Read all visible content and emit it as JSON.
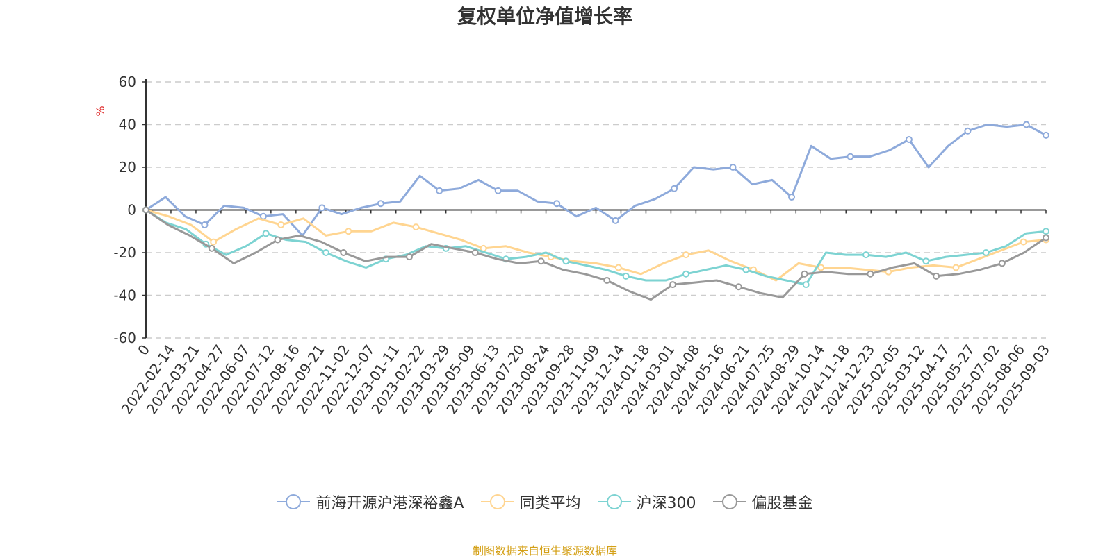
{
  "chart_data": {
    "type": "line",
    "title": "复权单位净值增长率",
    "ylabel": "%",
    "xlabel": "",
    "ylim": [
      -60,
      60
    ],
    "yticks": [
      60,
      40,
      20,
      0,
      -20,
      -40,
      -60
    ],
    "grid": true,
    "legend_position": "bottom",
    "x_tick_labels": [
      "0",
      "2022-02-14",
      "2022-03-21",
      "2022-04-27",
      "2022-06-07",
      "2022-07-12",
      "2022-08-16",
      "2022-09-21",
      "2022-11-02",
      "2022-12-07",
      "2023-01-11",
      "2023-02-22",
      "2023-03-29",
      "2023-05-09",
      "2023-06-13",
      "2023-07-20",
      "2023-08-24",
      "2023-09-28",
      "2023-11-09",
      "2023-12-14",
      "2024-01-18",
      "2024-03-01",
      "2024-04-08",
      "2024-05-16",
      "2024-06-21",
      "2024-07-25",
      "2024-08-29",
      "2024-10-14",
      "2024-11-18",
      "2024-12-23",
      "2025-02-05",
      "2025-03-12",
      "2025-04-17",
      "2025-05-27",
      "2025-07-02",
      "2025-08-06",
      "2025-09-03"
    ],
    "series": [
      {
        "name": "前海开源沪港深裕鑫A",
        "color": "#8eaadb",
        "values": [
          0,
          6,
          -3,
          -7,
          2,
          1,
          -3,
          -2,
          -12,
          1,
          -2,
          1,
          3,
          4,
          16,
          9,
          10,
          14,
          9,
          9,
          4,
          3,
          -3,
          1,
          -5,
          2,
          5,
          10,
          20,
          19,
          20,
          12,
          14,
          6,
          30,
          24,
          25,
          25,
          28,
          33,
          20,
          30,
          37,
          40,
          39,
          40,
          35
        ]
      },
      {
        "name": "同类平均",
        "color": "#ffd591",
        "values": [
          0,
          -3,
          -7,
          -15,
          -9,
          -4,
          -7,
          -4,
          -12,
          -10,
          -10,
          -6,
          -8,
          -11,
          -14,
          -18,
          -17,
          -20,
          -22,
          -24,
          -25,
          -27,
          -30,
          -25,
          -21,
          -19,
          -24,
          -28,
          -33,
          -25,
          -27,
          -27,
          -28,
          -29,
          -27,
          -26,
          -27,
          -23,
          -19,
          -15,
          -14
        ]
      },
      {
        "name": "沪深300",
        "color": "#7dd3d2",
        "values": [
          0,
          -6,
          -9,
          -16,
          -21,
          -17,
          -11,
          -14,
          -15,
          -20,
          -24,
          -27,
          -23,
          -21,
          -17,
          -18,
          -17,
          -20,
          -23,
          -22,
          -20,
          -24,
          -26,
          -28,
          -31,
          -33,
          -33,
          -30,
          -28,
          -26,
          -28,
          -31,
          -33,
          -35,
          -20,
          -21,
          -21,
          -22,
          -20,
          -24,
          -22,
          -21,
          -20,
          -17,
          -11,
          -10
        ]
      },
      {
        "name": "偏股基金",
        "color": "#999999",
        "values": [
          0,
          -7,
          -12,
          -18,
          -25,
          -20,
          -14,
          -12,
          -15,
          -20,
          -24,
          -22,
          -22,
          -16,
          -18,
          -20,
          -23,
          -25,
          -24,
          -28,
          -30,
          -33,
          -38,
          -42,
          -35,
          -34,
          -33,
          -36,
          -39,
          -41,
          -30,
          -29,
          -30,
          -30,
          -27,
          -25,
          -31,
          -30,
          -28,
          -25,
          -20,
          -13
        ]
      }
    ]
  },
  "source_text": "制图数据来自恒生聚源数据库"
}
